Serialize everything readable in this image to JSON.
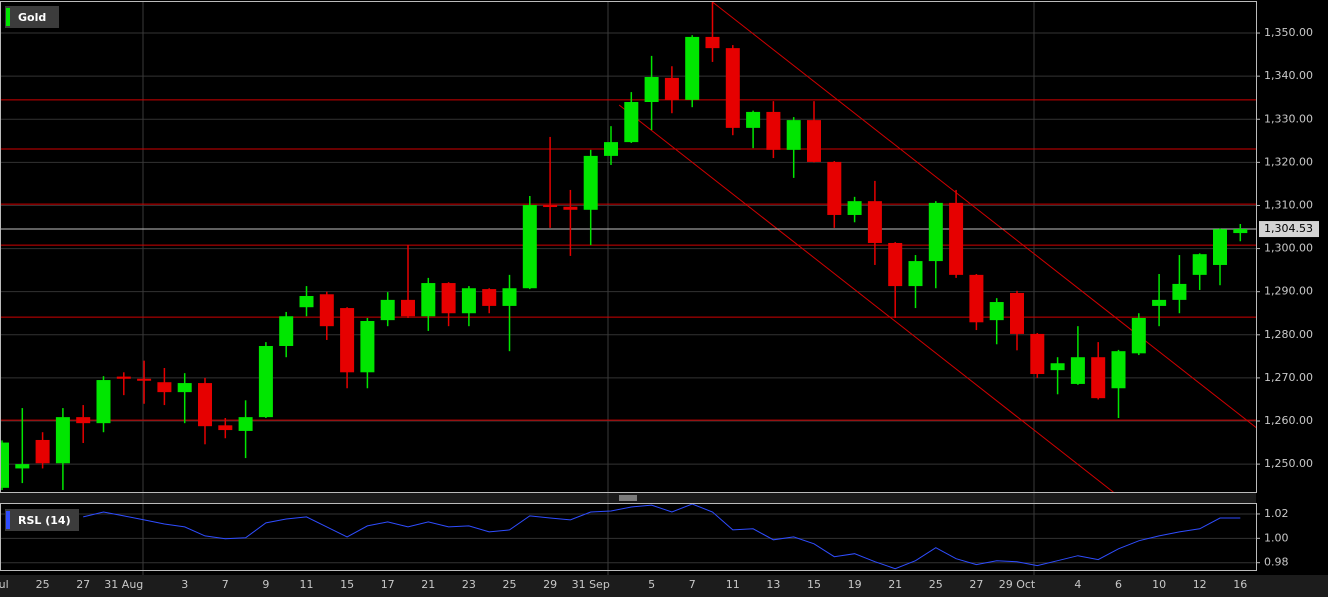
{
  "chart_data": [
    {
      "type": "candlestick",
      "title": "Gold",
      "categories": [
        "Jul",
        null,
        "25",
        null,
        "27",
        null,
        "31 Aug",
        null,
        null,
        "3",
        null,
        "7",
        null,
        "9",
        null,
        "11",
        null,
        "15",
        null,
        "17",
        null,
        "21",
        null,
        "23",
        null,
        "25",
        null,
        "29",
        null,
        "31 Sep",
        null,
        null,
        "5",
        null,
        "7",
        null,
        "11",
        null,
        "13",
        null,
        "15",
        null,
        "19",
        null,
        "21",
        null,
        "25",
        null,
        "27",
        null,
        "29 Oct",
        null,
        null,
        "4",
        null,
        "6",
        null,
        "10",
        null,
        "12",
        null,
        "16"
      ],
      "open": [
        1244.5,
        1249,
        1255.6,
        1250.2,
        1260.9,
        1259.5,
        1270.3,
        1269.8,
        1269,
        1266.7,
        1268.8,
        1259,
        1257.7,
        1260.9,
        1277.4,
        1286.4,
        1289.4,
        1286.2,
        1271.3,
        1283.4,
        1288.1,
        1284.3,
        1292,
        1285,
        1290.6,
        1286.7,
        1290.8,
        1310.1,
        1309.7,
        1309,
        1321.5,
        1324.7,
        1334,
        1339.6,
        1334.5,
        1349.1,
        1346.5,
        1328,
        1331.7,
        1322.9,
        1329.8,
        1320.1,
        1307.8,
        1311,
        1301.3,
        1291.3,
        1297.1,
        1310.6,
        1293.9,
        1283.4,
        1289.7,
        1280.2,
        1271.8,
        1268.6,
        1274.8,
        1267.6,
        1275.7,
        1286.7,
        1288.1,
        1293.9,
        1296.2,
        1303.6
      ],
      "high": [
        1255.5,
        1263,
        1257.4,
        1263,
        1263.7,
        1270.4,
        1271.3,
        1274,
        1272.3,
        1271.1,
        1270,
        1260.7,
        1264.8,
        1278.3,
        1285.3,
        1291.3,
        1290,
        1286.4,
        1283.9,
        1289.9,
        1300.8,
        1293.2,
        1292.2,
        1291.3,
        1290.8,
        1293.9,
        1312.2,
        1325.9,
        1313.6,
        1322.9,
        1328.4,
        1336.3,
        1344.7,
        1342.3,
        1349.5,
        1357.2,
        1347.2,
        1332,
        1334.2,
        1330.5,
        1334.2,
        1320.3,
        1312,
        1315.7,
        1301.5,
        1298.5,
        1311,
        1313.6,
        1294.1,
        1288.5,
        1290.2,
        1280.4,
        1274.8,
        1282,
        1278.3,
        1276.5,
        1285,
        1294.1,
        1298.5,
        1298.9,
        1304.7,
        1305.7
      ],
      "low": [
        1244,
        1245.6,
        1249,
        1244,
        1254.9,
        1257.4,
        1266,
        1264,
        1263.7,
        1259.5,
        1254.6,
        1256,
        1251.4,
        1260.7,
        1274.8,
        1284.3,
        1278.8,
        1267.6,
        1267.6,
        1282,
        1283.9,
        1280.9,
        1282,
        1282,
        1285,
        1276.2,
        1290.6,
        1304.8,
        1298.3,
        1300.8,
        1319.4,
        1324.5,
        1327.5,
        1331.4,
        1332.8,
        1343.3,
        1326.3,
        1323.3,
        1321,
        1316.4,
        1320,
        1304.8,
        1306.1,
        1296.2,
        1283.9,
        1286.2,
        1290.8,
        1293.2,
        1281.1,
        1277.8,
        1276.4,
        1270,
        1266.2,
        1268.4,
        1265,
        1260.7,
        1275.3,
        1282,
        1285,
        1290.4,
        1291.5,
        1301.7
      ],
      "close": [
        1255,
        1250,
        1250.2,
        1260.9,
        1259.5,
        1269.5,
        1269.8,
        1269.4,
        1266.7,
        1268.8,
        1258.8,
        1257.9,
        1260.9,
        1277.4,
        1284.3,
        1289,
        1282,
        1271.3,
        1283.2,
        1288.1,
        1284.3,
        1292,
        1285,
        1290.8,
        1286.7,
        1290.8,
        1310.1,
        1309.7,
        1309,
        1321.5,
        1324.7,
        1334,
        1339.8,
        1334.5,
        1349.1,
        1346.5,
        1328,
        1331.7,
        1322.9,
        1329.8,
        1320.1,
        1307.8,
        1311,
        1301.3,
        1291.3,
        1297.1,
        1310.6,
        1293.9,
        1282.9,
        1287.6,
        1280.2,
        1270.9,
        1273.4,
        1274.8,
        1265.3,
        1276.2,
        1283.9,
        1288.1,
        1291.8,
        1298.7,
        1304.5,
        1304.53
      ],
      "up_color": "#00e600",
      "down_color": "#e60000",
      "levels": [
        1334.5,
        1323.1,
        1310.3,
        1300.8,
        1284.1,
        1260.2
      ],
      "level_color": "#d00000",
      "trendlines": [
        {
          "start": [
            35,
            1357.2
          ],
          "end": [
            61.8,
            1258.4
          ]
        },
        {
          "start": [
            30.4,
            1333.3
          ],
          "end": [
            54.8,
            1243.3
          ]
        }
      ],
      "trendline_color": "#d00000",
      "current_price": {
        "value": 1304.53,
        "label": "1,304.53"
      },
      "ylim": [
        1243.3,
        1357.2
      ],
      "yticks": [
        {
          "value": 1250,
          "label": "1,250.00"
        },
        {
          "value": 1260,
          "label": "1,260.00"
        },
        {
          "value": 1270,
          "label": "1,270.00"
        },
        {
          "value": 1280,
          "label": "1,280.00"
        },
        {
          "value": 1290,
          "label": "1,290.00"
        },
        {
          "value": 1300,
          "label": "1,300.00"
        },
        {
          "value": 1310,
          "label": "1,310.00"
        },
        {
          "value": 1320,
          "label": "1,320.00"
        },
        {
          "value": 1330,
          "label": "1,330.00"
        },
        {
          "value": 1340,
          "label": "1,340.00"
        },
        {
          "value": 1350,
          "label": "1,350.00"
        }
      ],
      "grid": true
    },
    {
      "type": "line",
      "series": [
        {
          "name": "RSL (14)",
          "color": "#2f4dff",
          "values": [
            null,
            null,
            null,
            null,
            1.0176,
            1.0216,
            1.0184,
            1.0151,
            1.0118,
            1.0094,
            1.002,
            0.9996,
            1.0004,
            1.0127,
            1.0159,
            1.0176,
            1.0094,
            1.0012,
            1.0102,
            1.0135,
            1.0094,
            1.0135,
            1.0094,
            1.0102,
            1.0053,
            1.0069,
            1.0184,
            1.0167,
            1.0151,
            1.0216,
            1.0224,
            1.0257,
            1.0273,
            1.0216,
            1.0282,
            1.0216,
            1.0069,
            1.0078,
            0.9988,
            1.0012,
            0.9955,
            0.9849,
            0.9874,
            0.9808,
            0.9751,
            0.9816,
            0.9923,
            0.9833,
            0.9784,
            0.9816,
            0.9808,
            0.9776,
            0.9816,
            0.9857,
            0.9825,
            0.9914,
            0.998,
            1.002,
            1.0053,
            1.0078,
            1.0167,
            1.0167
          ]
        }
      ],
      "ylim": [
        0.974,
        1.029
      ],
      "yticks": [
        1.02,
        {
          "value": 1,
          "label": "1.00"
        },
        0.98
      ],
      "grid": true
    }
  ]
}
